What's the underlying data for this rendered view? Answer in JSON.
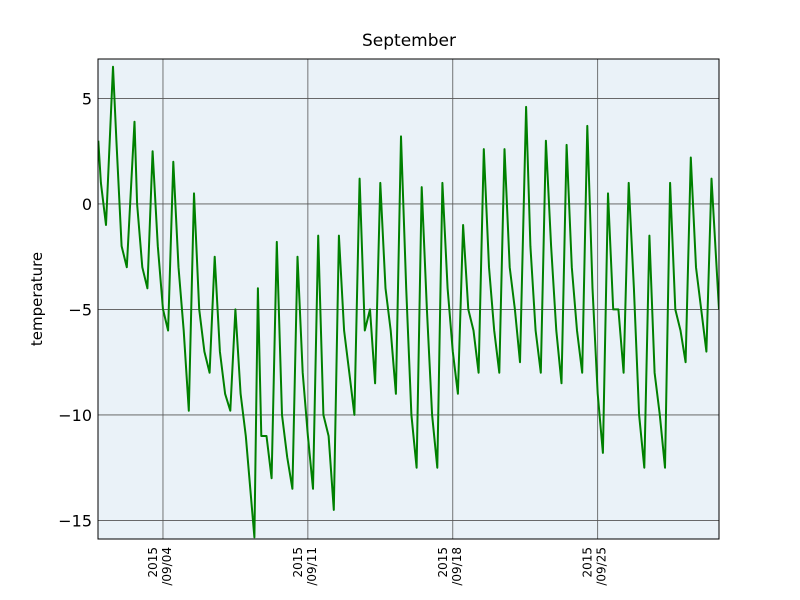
{
  "chart_data": {
    "type": "line",
    "title": "September",
    "ylabel": "temperature",
    "color": "#008000",
    "background": "#eaf2f8",
    "grid": true,
    "xlim": [
      "2015-08-31T20:40",
      "2015-09-30T20:40"
    ],
    "xticks": [
      {
        "value": "2015-09-04",
        "label": "2015\n/09/04"
      },
      {
        "value": "2015-09-11",
        "label": "2015\n/09/11"
      },
      {
        "value": "2015-09-18",
        "label": "2015\n/09/18"
      },
      {
        "value": "2015-09-25",
        "label": "2015\n/09/25"
      }
    ],
    "ylim": [
      -15.88,
      6.87
    ],
    "yticks": [
      {
        "value": -15,
        "label": "−15"
      },
      {
        "value": -10,
        "label": "−10"
      },
      {
        "value": -5,
        "label": "−5"
      },
      0,
      5
    ],
    "x": [
      "2015-08-31T21:00",
      "2015-09-01T00:00",
      "2015-09-01T06:00",
      "2015-09-01T14:00",
      "2015-09-01T18:00",
      "2015-09-02T00:00",
      "2015-09-02T06:00",
      "2015-09-02T15:00",
      "2015-09-02T18:00",
      "2015-09-03T00:00",
      "2015-09-03T06:00",
      "2015-09-03T12:00",
      "2015-09-03T18:00",
      "2015-09-04T00:00",
      "2015-09-04T06:00",
      "2015-09-04T12:00",
      "2015-09-04T18:00",
      "2015-09-05T00:00",
      "2015-09-05T06:00",
      "2015-09-05T12:00",
      "2015-09-05T18:00",
      "2015-09-06T00:00",
      "2015-09-06T06:00",
      "2015-09-06T12:00",
      "2015-09-06T18:00",
      "2015-09-07T00:00",
      "2015-09-07T06:00",
      "2015-09-07T12:00",
      "2015-09-07T18:00",
      "2015-09-08T00:00",
      "2015-09-08T10:00",
      "2015-09-08T14:00",
      "2015-09-08T18:00",
      "2015-09-09T00:00",
      "2015-09-09T06:00",
      "2015-09-09T12:00",
      "2015-09-09T18:00",
      "2015-09-10T00:00",
      "2015-09-10T06:00",
      "2015-09-10T12:00",
      "2015-09-10T18:00",
      "2015-09-11T00:00",
      "2015-09-11T06:00",
      "2015-09-11T12:00",
      "2015-09-11T18:00",
      "2015-09-12T00:00",
      "2015-09-12T06:00",
      "2015-09-12T12:00",
      "2015-09-12T18:00",
      "2015-09-13T00:00",
      "2015-09-13T06:00",
      "2015-09-13T12:00",
      "2015-09-13T18:00",
      "2015-09-14T00:00",
      "2015-09-14T06:00",
      "2015-09-14T12:00",
      "2015-09-14T18:00",
      "2015-09-15T00:00",
      "2015-09-15T06:00",
      "2015-09-15T12:00",
      "2015-09-15T18:00",
      "2015-09-16T00:00",
      "2015-09-16T06:00",
      "2015-09-16T12:00",
      "2015-09-16T18:00",
      "2015-09-17T00:00",
      "2015-09-17T06:00",
      "2015-09-17T12:00",
      "2015-09-17T18:00",
      "2015-09-18T00:00",
      "2015-09-18T06:00",
      "2015-09-18T12:00",
      "2015-09-18T18:00",
      "2015-09-19T00:00",
      "2015-09-19T06:00",
      "2015-09-19T12:00",
      "2015-09-19T18:00",
      "2015-09-20T00:00",
      "2015-09-20T06:00",
      "2015-09-20T12:00",
      "2015-09-20T18:00",
      "2015-09-21T00:00",
      "2015-09-21T06:00",
      "2015-09-21T13:00",
      "2015-09-21T18:00",
      "2015-09-22T00:00",
      "2015-09-22T06:00",
      "2015-09-22T12:00",
      "2015-09-22T18:00",
      "2015-09-23T00:00",
      "2015-09-23T06:00",
      "2015-09-23T12:00",
      "2015-09-23T18:00",
      "2015-09-24T00:00",
      "2015-09-24T06:00",
      "2015-09-24T12:00",
      "2015-09-24T18:00",
      "2015-09-25T00:00",
      "2015-09-25T06:00",
      "2015-09-25T12:00",
      "2015-09-25T18:00",
      "2015-09-26T00:00",
      "2015-09-26T06:00",
      "2015-09-26T12:00",
      "2015-09-26T18:00",
      "2015-09-27T00:00",
      "2015-09-27T06:00",
      "2015-09-27T12:00",
      "2015-09-27T18:00",
      "2015-09-28T00:00",
      "2015-09-28T06:00",
      "2015-09-28T12:00",
      "2015-09-28T18:00",
      "2015-09-29T00:00",
      "2015-09-29T06:00",
      "2015-09-29T12:00",
      "2015-09-29T18:00",
      "2015-09-30T00:00",
      "2015-09-30T06:00",
      "2015-09-30T12:00",
      "2015-09-30T20:40"
    ],
    "series": [
      {
        "color": "#008000",
        "values": [
          3,
          1,
          -1,
          6.5,
          3,
          -2,
          -3,
          3.9,
          0,
          -3,
          -4,
          2.5,
          -2,
          -5,
          -6,
          2,
          -3,
          -6,
          -9.8,
          0.5,
          -5,
          -7,
          -8,
          -2.5,
          -7,
          -9,
          -9.8,
          -5,
          -9,
          -11,
          -15.8,
          -4,
          -11,
          -11,
          -13,
          -1.8,
          -10,
          -12,
          -13.5,
          -2.5,
          -8,
          -11,
          -13.5,
          -1.5,
          -10,
          -11,
          -14.5,
          -1.5,
          -6,
          -8,
          -10,
          1.2,
          -6,
          -5,
          -8.5,
          1,
          -4,
          -6,
          -9,
          3.2,
          -4,
          -10,
          -12.5,
          0.8,
          -5,
          -10,
          -12.5,
          1,
          -4,
          -7,
          -9,
          -1,
          -5,
          -6,
          -8,
          2.6,
          -3,
          -6,
          -8,
          2.6,
          -3,
          -5,
          -7.5,
          4.6,
          -2,
          -6,
          -8,
          3,
          -2,
          -6,
          -8.5,
          2.8,
          -3,
          -6,
          -8,
          3.7,
          -4,
          -9,
          -11.8,
          0.5,
          -5,
          -5,
          -8,
          1,
          -4,
          -10,
          -12.5,
          -1.5,
          -8,
          -10,
          -12.5,
          1,
          -5,
          -6,
          -7.5,
          2.2,
          -3,
          -5,
          -7,
          1.2,
          -5
        ]
      }
    ]
  }
}
